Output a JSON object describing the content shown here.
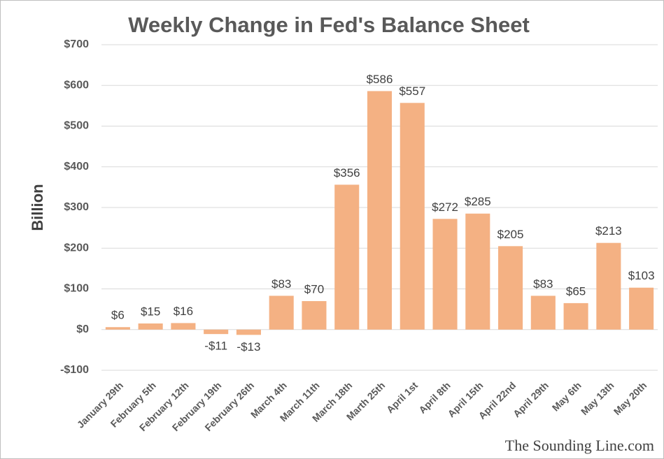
{
  "chart_data": {
    "type": "bar",
    "title": "Weekly Change in Fed's Balance Sheet",
    "y_label": "Billion",
    "categories": [
      "January 29th",
      "February 5th",
      "February 12th",
      "February 19th",
      "February 26th",
      "March 4th",
      "March 11th",
      "March 18th",
      "Marth 25th",
      "April 1st",
      "April 8th",
      "April 15th",
      "April 22nd",
      "April 29th",
      "May 6th",
      "May 13th",
      "May 20th"
    ],
    "values": [
      6,
      15,
      16,
      -11,
      -13,
      83,
      70,
      356,
      586,
      557,
      272,
      285,
      205,
      83,
      65,
      213,
      103
    ],
    "value_labels": [
      "$6",
      "$15",
      "$16",
      "-$11",
      "-$13",
      "$83",
      "$70",
      "$356",
      "$586",
      "$557",
      "$272",
      "$285",
      "$205",
      "$83",
      "$65",
      "$213",
      "$103"
    ],
    "color": "#f4b183",
    "ylim": [
      -100,
      700
    ],
    "yticks": [
      {
        "value": -100,
        "label": "-$100"
      },
      {
        "value": 0,
        "label": "$0"
      },
      {
        "value": 100,
        "label": "$100"
      },
      {
        "value": 200,
        "label": "$200"
      },
      {
        "value": 300,
        "label": "$300"
      },
      {
        "value": 400,
        "label": "$400"
      },
      {
        "value": 500,
        "label": "$500"
      },
      {
        "value": 600,
        "label": "$600"
      },
      {
        "value": 700,
        "label": "$700"
      }
    ],
    "grid": true,
    "watermark": "The Sounding Line.com"
  }
}
